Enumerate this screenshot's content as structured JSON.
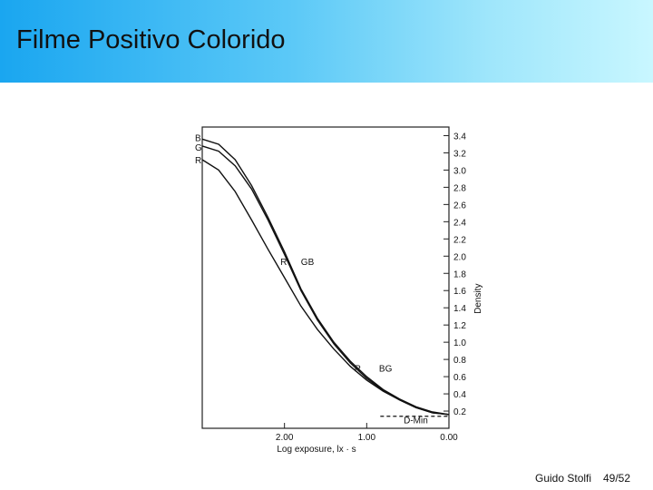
{
  "slide": {
    "title": "Filme Positivo Colorido",
    "footer_author": "Guido Stolfi",
    "footer_page": "49/52"
  },
  "chart_data": {
    "type": "line",
    "xlabel": "Log exposure, lx · s",
    "ylabel": "Density",
    "x_ticks": [
      "2.00",
      "1.00",
      "0.00"
    ],
    "x_tick_values": [
      2.0,
      1.0,
      0.0
    ],
    "xlim": [
      3.0,
      0.0
    ],
    "ylim": [
      0.0,
      3.5
    ],
    "y_ticks": [
      "3.4",
      "3.2",
      "3.0",
      "2.8",
      "2.6",
      "2.4",
      "2.2",
      "2.0",
      "1.8",
      "1.6",
      "1.4",
      "1.2",
      "1.0",
      "0.8",
      "0.6",
      "0.4",
      "0.2"
    ],
    "y_tick_values": [
      3.4,
      3.2,
      3.0,
      2.8,
      2.6,
      2.4,
      2.2,
      2.0,
      1.8,
      1.6,
      1.4,
      1.2,
      1.0,
      0.8,
      0.6,
      0.4,
      0.2
    ],
    "series": [
      {
        "name": "B",
        "x": [
          3.0,
          2.8,
          2.6,
          2.4,
          2.2,
          2.0,
          1.8,
          1.6,
          1.4,
          1.2,
          1.0,
          0.8,
          0.6,
          0.4,
          0.2,
          0.0
        ],
        "y": [
          3.36,
          3.3,
          3.12,
          2.82,
          2.45,
          2.05,
          1.62,
          1.28,
          1.0,
          0.78,
          0.6,
          0.45,
          0.34,
          0.25,
          0.19,
          0.16
        ]
      },
      {
        "name": "G",
        "x": [
          3.0,
          2.8,
          2.6,
          2.4,
          2.2,
          2.0,
          1.8,
          1.6,
          1.4,
          1.2,
          1.0,
          0.8,
          0.6,
          0.4,
          0.2,
          0.0
        ],
        "y": [
          3.28,
          3.22,
          3.05,
          2.78,
          2.42,
          2.02,
          1.6,
          1.26,
          0.98,
          0.76,
          0.58,
          0.44,
          0.33,
          0.24,
          0.18,
          0.16
        ]
      },
      {
        "name": "R",
        "x": [
          3.0,
          2.8,
          2.6,
          2.4,
          2.2,
          2.0,
          1.8,
          1.6,
          1.4,
          1.2,
          1.0,
          0.8,
          0.6,
          0.4,
          0.2,
          0.0
        ],
        "y": [
          3.12,
          3.0,
          2.75,
          2.42,
          2.08,
          1.75,
          1.42,
          1.15,
          0.92,
          0.72,
          0.56,
          0.43,
          0.33,
          0.24,
          0.18,
          0.16
        ]
      }
    ],
    "annotations": [
      {
        "text": "B",
        "x": 3.0,
        "y": 3.36
      },
      {
        "text": "G",
        "x": 3.0,
        "y": 3.28
      },
      {
        "text": "R",
        "x": 3.0,
        "y": 3.12
      },
      {
        "text": "R",
        "x": 2.05,
        "y": 1.9
      },
      {
        "text": "GB",
        "x": 1.8,
        "y": 1.9
      },
      {
        "text": "R",
        "x": 1.15,
        "y": 0.66
      },
      {
        "text": "BG",
        "x": 0.85,
        "y": 0.66
      },
      {
        "text": "D-Min",
        "x": 0.55,
        "y": 0.06
      }
    ],
    "dmin_line": {
      "y": 0.14,
      "x_from": 1.0,
      "x_to": 0.0
    }
  }
}
